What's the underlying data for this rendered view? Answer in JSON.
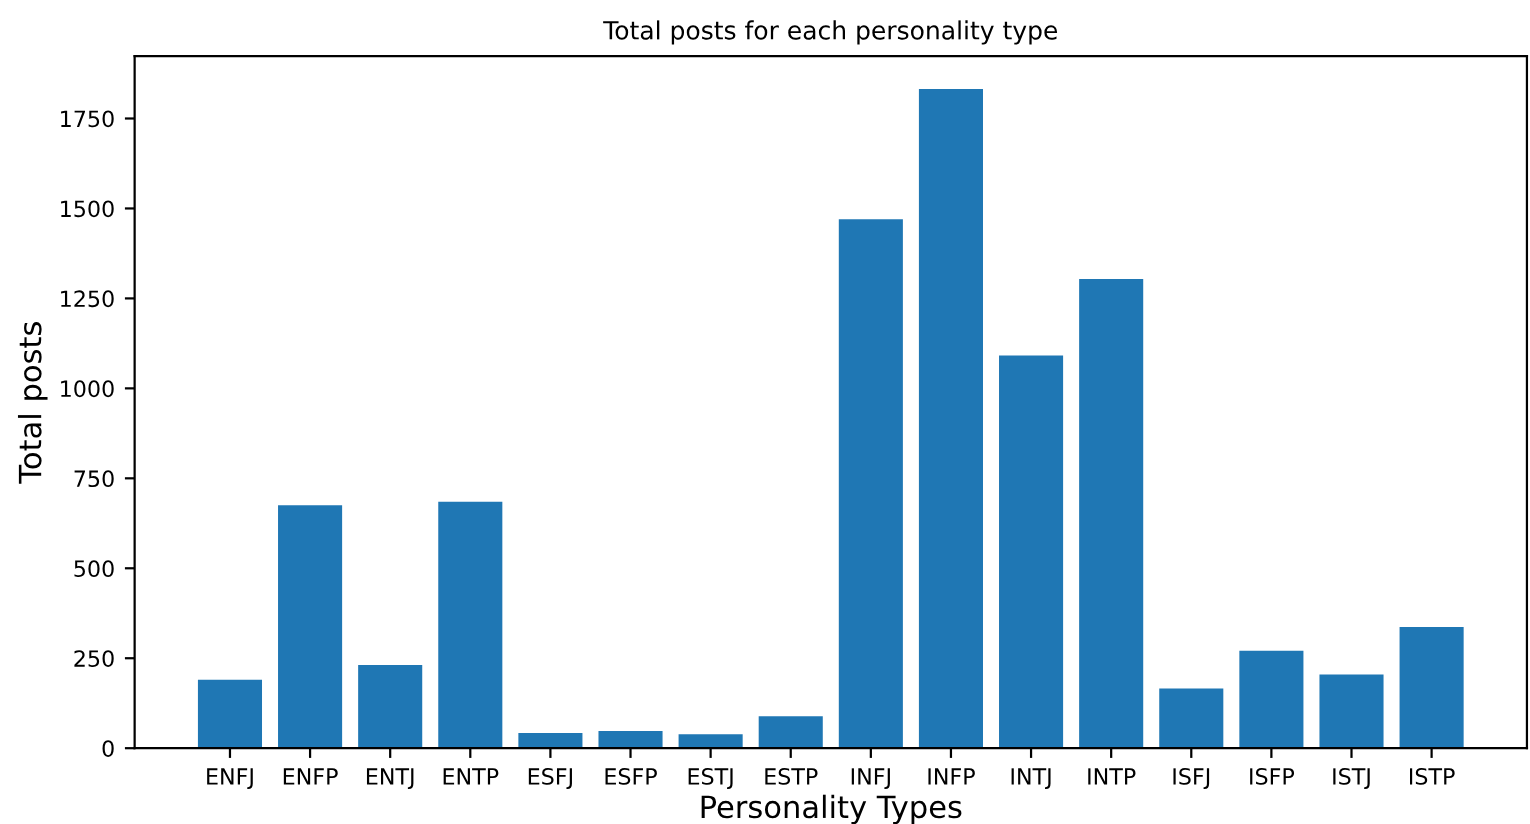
{
  "chart_data": {
    "type": "bar",
    "title": "Total posts for each personality type",
    "xlabel": "Personality Types",
    "ylabel": "Total posts",
    "categories": [
      "ENFJ",
      "ENFP",
      "ENTJ",
      "ENTP",
      "ESFJ",
      "ESFP",
      "ESTJ",
      "ESTP",
      "INFJ",
      "INFP",
      "INTJ",
      "INTP",
      "ISFJ",
      "ISFP",
      "ISTJ",
      "ISTP"
    ],
    "values": [
      190,
      675,
      231,
      685,
      42,
      48,
      39,
      89,
      1470,
      1832,
      1091,
      1304,
      166,
      271,
      205,
      337
    ],
    "color": "#1f77b4",
    "ylim": [
      0,
      1923.6
    ],
    "yticks": [
      0,
      250,
      500,
      750,
      1000,
      1250,
      1500,
      1750
    ],
    "grid": false
  }
}
